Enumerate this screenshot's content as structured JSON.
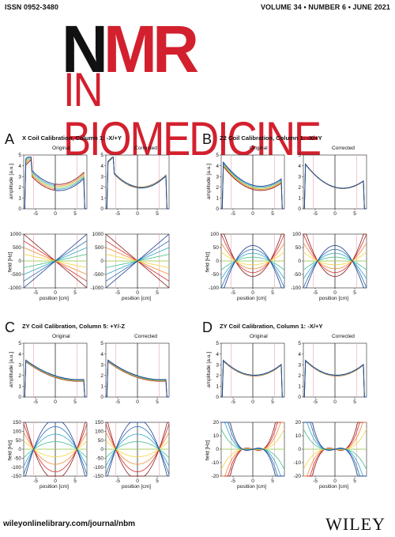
{
  "header": {
    "issn": "ISSN 0952-3480",
    "volume": "VOLUME 34 • NUMBER 6 • JUNE 2021"
  },
  "title": {
    "nmr_n": "N",
    "nmr_mr": "MR",
    "subtitle": "IN BIOMEDICINE"
  },
  "panels": [
    {
      "label": "A",
      "title": "X Coil Calibration, Column 1: -X/+Y",
      "left": "Original",
      "right": "Corrected",
      "amp_ylabel": "amplitude [a.u.]",
      "field_ylabel": "field [Hz]",
      "xlabel": "position [cm]",
      "amp_ticks": [
        "5",
        "4",
        "3",
        "2",
        "1",
        "0"
      ],
      "field_ticks": [
        "1000",
        "500",
        "0",
        "-500",
        "-1000"
      ],
      "x_ticks": [
        "-5",
        "0",
        "5"
      ]
    },
    {
      "label": "B",
      "title": "Z2 Coil Calibration, Column 1: -X/+Y",
      "left": "Original",
      "right": "Corrected",
      "amp_ylabel": "amplitude [a.u.]",
      "field_ylabel": "field [Hz]",
      "xlabel": "position [cm]",
      "amp_ticks": [
        "5",
        "4",
        "3",
        "2",
        "1",
        "0"
      ],
      "field_ticks": [
        "100",
        "50",
        "0",
        "-50",
        "-100"
      ],
      "x_ticks": [
        "-5",
        "0",
        "5"
      ]
    },
    {
      "label": "C",
      "title": "ZY Coil Calibration, Column 5: +Y/-Z",
      "left": "Original",
      "right": "Corrected",
      "amp_ylabel": "amplitude [a.u.]",
      "field_ylabel": "field [Hz]",
      "xlabel": "position [cm]",
      "amp_ticks": [
        "5",
        "4",
        "3",
        "2",
        "1",
        "0"
      ],
      "field_ticks": [
        "150",
        "100",
        "50",
        "0",
        "-50",
        "-100",
        "-150"
      ],
      "x_ticks": [
        "-5",
        "0",
        "5"
      ]
    },
    {
      "label": "D",
      "title": "ZY Coil Calibration, Column 1: -X/+Y",
      "left": "Original",
      "right": "Corrected",
      "amp_ylabel": "amplitude [a.u.]",
      "field_ylabel": "field [Hz]",
      "xlabel": "position [cm]",
      "amp_ticks": [
        "5",
        "4",
        "3",
        "2",
        "1",
        "0"
      ],
      "field_ticks": [
        "20",
        "10",
        "0",
        "-10",
        "-20"
      ],
      "x_ticks": [
        "-5",
        "0",
        "5"
      ]
    }
  ],
  "footer": {
    "url": "wileyonlinelibrary.com/journal/nbm",
    "publisher": "WILEY"
  },
  "chart_data": [
    {
      "type": "line",
      "panel": "A",
      "plot": "amplitude",
      "ylim": [
        0,
        5
      ],
      "xlim": [
        -8,
        8
      ]
    },
    {
      "type": "line",
      "panel": "A",
      "plot": "field",
      "ylim": [
        -1000,
        1000
      ],
      "xlim": [
        -8,
        8
      ]
    },
    {
      "type": "line",
      "panel": "B",
      "plot": "amplitude",
      "ylim": [
        0,
        5
      ],
      "xlim": [
        -8,
        8
      ]
    },
    {
      "type": "line",
      "panel": "B",
      "plot": "field",
      "ylim": [
        -100,
        100
      ],
      "xlim": [
        -8,
        8
      ]
    },
    {
      "type": "line",
      "panel": "C",
      "plot": "amplitude",
      "ylim": [
        0,
        5
      ],
      "xlim": [
        -8,
        8
      ]
    },
    {
      "type": "line",
      "panel": "C",
      "plot": "field",
      "ylim": [
        -150,
        150
      ],
      "xlim": [
        -8,
        8
      ]
    },
    {
      "type": "line",
      "panel": "D",
      "plot": "amplitude",
      "ylim": [
        0,
        5
      ],
      "xlim": [
        -8,
        8
      ]
    },
    {
      "type": "line",
      "panel": "D",
      "plot": "field",
      "ylim": [
        -20,
        20
      ],
      "xlim": [
        -8,
        8
      ]
    }
  ]
}
